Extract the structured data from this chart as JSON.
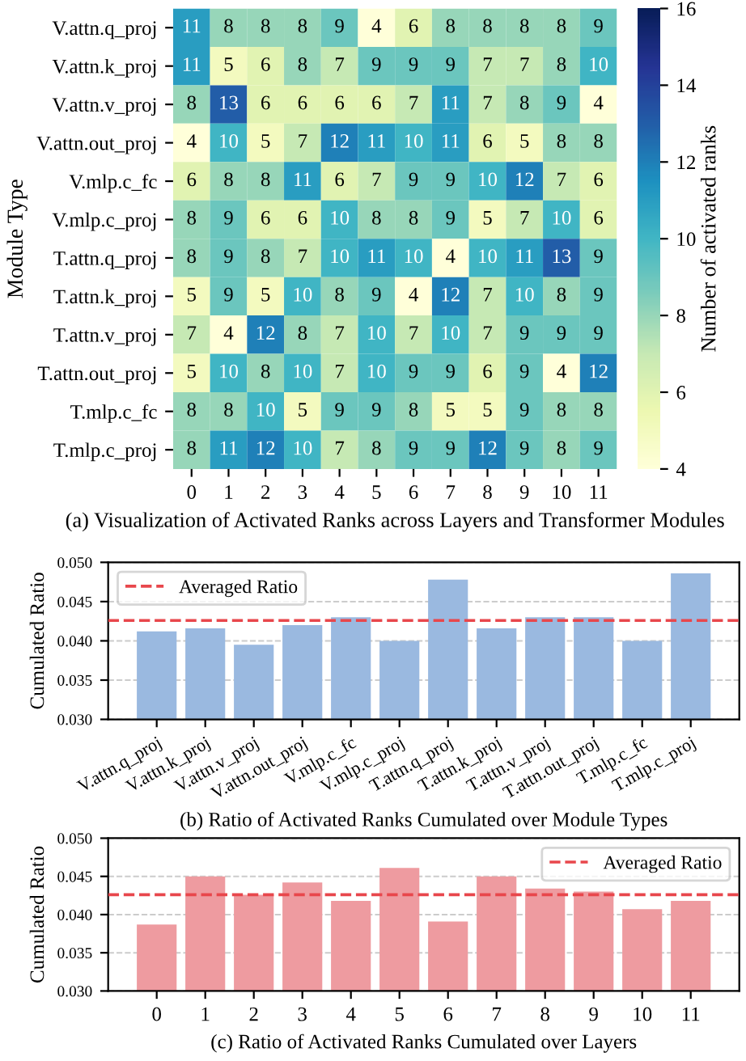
{
  "chart_data": [
    {
      "type": "heatmap",
      "xlabel": "(a) Visualization of Activated Ranks across Layers and Transformer Modules",
      "ylabel": "Module Type",
      "clabel": "Number of activated ranks",
      "categories": [
        "0",
        "1",
        "2",
        "3",
        "4",
        "5",
        "6",
        "7",
        "8",
        "9",
        "10",
        "11"
      ],
      "y_categories": [
        "V.attn.q_proj",
        "V.attn.k_proj",
        "V.attn.v_proj",
        "V.attn.out_proj",
        "V.mlp.c_fc",
        "V.mlp.c_proj",
        "T.attn.q_proj",
        "T.attn.k_proj",
        "T.attn.v_proj",
        "T.attn.out_proj",
        "T.mlp.c_fc",
        "T.mlp.c_proj"
      ],
      "cells": [
        [
          11,
          8,
          8,
          8,
          9,
          4,
          6,
          8,
          8,
          8,
          8,
          9
        ],
        [
          11,
          5,
          6,
          8,
          7,
          9,
          9,
          9,
          7,
          7,
          8,
          10
        ],
        [
          8,
          13,
          6,
          6,
          6,
          6,
          7,
          11,
          7,
          8,
          9,
          4
        ],
        [
          4,
          10,
          5,
          7,
          12,
          11,
          10,
          11,
          6,
          5,
          8,
          8
        ],
        [
          6,
          8,
          8,
          11,
          6,
          7,
          9,
          9,
          10,
          12,
          7,
          6
        ],
        [
          8,
          9,
          6,
          6,
          10,
          8,
          8,
          9,
          5,
          7,
          10,
          6
        ],
        [
          8,
          9,
          8,
          7,
          10,
          11,
          10,
          4,
          10,
          11,
          13,
          9
        ],
        [
          5,
          9,
          5,
          10,
          8,
          9,
          4,
          12,
          7,
          10,
          8,
          9
        ],
        [
          7,
          4,
          12,
          8,
          7,
          10,
          7,
          10,
          7,
          9,
          9,
          9
        ],
        [
          5,
          10,
          8,
          10,
          7,
          10,
          9,
          9,
          6,
          9,
          4,
          12
        ],
        [
          8,
          8,
          10,
          5,
          9,
          9,
          8,
          5,
          5,
          9,
          8,
          8
        ],
        [
          8,
          11,
          12,
          10,
          7,
          8,
          9,
          9,
          12,
          9,
          8,
          9
        ]
      ],
      "clim": [
        4,
        16
      ],
      "cticks": [
        4,
        6,
        8,
        10,
        12,
        14,
        16
      ],
      "data_labels": true
    },
    {
      "type": "bar",
      "xlabel": "(b) Ratio of Activated Ranks Cumulated over Module Types",
      "ylabel": "Cumulated Ratio",
      "categories": [
        "V.attn.q_proj",
        "V.attn.k_proj",
        "V.attn.v_proj",
        "V.attn.out_proj",
        "V.mlp.c_fc",
        "V.mlp.c_proj",
        "T.attn.q_proj",
        "T.attn.k_proj",
        "T.attn.v_proj",
        "T.attn.out_proj",
        "T.mlp.c_fc",
        "T.mlp.c_proj"
      ],
      "values": [
        0.0412,
        0.0416,
        0.0395,
        0.042,
        0.043,
        0.04,
        0.0478,
        0.0416,
        0.043,
        0.043,
        0.04,
        0.0486
      ],
      "color": "#9ab9e0",
      "ylim": [
        0.03,
        0.05
      ],
      "yticks": [
        {
          "value": 0.03,
          "label": "0.030"
        },
        {
          "value": 0.035,
          "label": "0.035"
        },
        {
          "value": 0.04,
          "label": "0.040"
        },
        {
          "value": 0.045,
          "label": "0.045"
        },
        {
          "value": 0.05,
          "label": "0.050"
        }
      ],
      "ref_lines": [
        {
          "axis": "y",
          "value": 0.0426,
          "label": "Averaged Ratio",
          "color": "#e8474c",
          "line_style": "dashed"
        }
      ],
      "grid": "y",
      "legend": "top left"
    },
    {
      "type": "bar",
      "xlabel": "(c) Ratio of Activated Ranks Cumulated over Layers",
      "ylabel": "Cumulated Ratio",
      "categories": [
        "0",
        "1",
        "2",
        "3",
        "4",
        "5",
        "6",
        "7",
        "8",
        "9",
        "10",
        "11"
      ],
      "values": [
        0.0387,
        0.045,
        0.0426,
        0.0442,
        0.0418,
        0.0461,
        0.0391,
        0.045,
        0.0434,
        0.043,
        0.0407,
        0.0418
      ],
      "color": "#ee9ba0",
      "ylim": [
        0.03,
        0.05
      ],
      "yticks": [
        {
          "value": 0.03,
          "label": "0.030"
        },
        {
          "value": 0.035,
          "label": "0.035"
        },
        {
          "value": 0.04,
          "label": "0.040"
        },
        {
          "value": 0.045,
          "label": "0.045"
        },
        {
          "value": 0.05,
          "label": "0.050"
        }
      ],
      "ref_lines": [
        {
          "axis": "y",
          "value": 0.0426,
          "label": "Averaged Ratio",
          "color": "#e8474c",
          "line_style": "dashed"
        }
      ],
      "grid": "y",
      "legend": "top right"
    }
  ]
}
